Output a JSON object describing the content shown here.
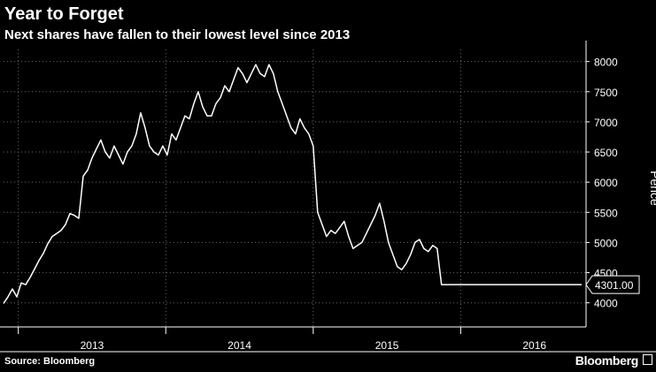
{
  "header": {
    "title": "Year to Forget",
    "subtitle": "Next shares have fallen to their lowest level since 2013"
  },
  "footer": {
    "source": "Source: Bloomberg",
    "brand": "Bloomberg"
  },
  "colors": {
    "background": "#000000",
    "line": "#ffffff",
    "grid": "#6a6a6a",
    "text": "#ffffff"
  },
  "chart_data": {
    "type": "line",
    "title": "Year to Forget",
    "subtitle": "Next shares have fallen to their lowest level since 2013",
    "xlabel": "",
    "ylabel": "Pence",
    "x_tick_labels": [
      "2013",
      "2014",
      "2015",
      "2016"
    ],
    "y_ticks": [
      4000,
      4500,
      5000,
      5500,
      6000,
      6500,
      7000,
      7500,
      8000
    ],
    "ylim": [
      3600,
      8200
    ],
    "xlim": [
      2012.9,
      2016.85
    ],
    "grid": "dotted",
    "last_value_label": "4301.00",
    "series": [
      {
        "x": [
          2012.9,
          2012.93,
          2012.96,
          2012.99,
          2013.02,
          2013.05,
          2013.08,
          2013.11,
          2013.14,
          2013.17,
          2013.2,
          2013.23,
          2013.26,
          2013.29,
          2013.32,
          2013.35,
          2013.38,
          2013.41,
          2013.44,
          2013.47,
          2013.5,
          2013.53,
          2013.56,
          2013.59,
          2013.62,
          2013.65,
          2013.68,
          2013.71,
          2013.74,
          2013.77,
          2013.8,
          2013.83,
          2013.86,
          2013.89,
          2013.92,
          2013.95,
          2013.98,
          2014.01,
          2014.04,
          2014.07,
          2014.1,
          2014.13,
          2014.16,
          2014.19,
          2014.22,
          2014.25,
          2014.28,
          2014.31,
          2014.34,
          2014.37,
          2014.4,
          2014.43,
          2014.46,
          2014.49,
          2014.52,
          2014.55,
          2014.58,
          2014.61,
          2014.64,
          2014.67,
          2014.7,
          2014.73,
          2014.76,
          2014.79,
          2014.82,
          2014.85,
          2014.88,
          2014.91,
          2014.94,
          2014.97,
          2015.0,
          2015.03,
          2015.06,
          2015.09,
          2015.12,
          2015.15,
          2015.18,
          2015.21,
          2015.24,
          2015.27,
          2015.3,
          2015.33,
          2015.36,
          2015.39,
          2015.42,
          2015.45,
          2015.48,
          2015.51,
          2015.54,
          2015.57,
          2015.6,
          2015.63,
          2015.66,
          2015.69,
          2015.72,
          2015.75,
          2015.78,
          2015.81,
          2015.84,
          2015.87,
          2015.9,
          2015.93,
          2015.96,
          2015.99,
          2016.02,
          2016.05,
          2016.08,
          2016.11,
          2016.14,
          2016.17,
          2016.2,
          2016.23,
          2016.26,
          2016.29,
          2016.32,
          2016.35,
          2016.38,
          2016.41,
          2016.44,
          2016.47,
          2016.5,
          2016.53,
          2016.56,
          2016.59,
          2016.62,
          2016.65,
          2016.68,
          2016.71,
          2016.74,
          2016.77,
          2016.8,
          2016.82
        ],
        "values": [
          3990,
          4100,
          4230,
          4100,
          4330,
          4300,
          4420,
          4560,
          4700,
          4820,
          4980,
          5100,
          5150,
          5200,
          5300,
          5480,
          5450,
          5400,
          6100,
          6200,
          6400,
          6550,
          6700,
          6500,
          6400,
          6600,
          6450,
          6300,
          6500,
          6600,
          6800,
          7150,
          6900,
          6600,
          6500,
          6450,
          6600,
          6450,
          6800,
          6700,
          6900,
          7100,
          7050,
          7300,
          7500,
          7250,
          7100,
          7100,
          7300,
          7400,
          7600,
          7500,
          7700,
          7900,
          7800,
          7650,
          7800,
          7950,
          7800,
          7750,
          7950,
          7800,
          7500,
          7300,
          7100,
          6900,
          6800,
          7050,
          6900,
          6800,
          6600,
          5500,
          5300,
          5100,
          5200,
          5150,
          5250,
          5350,
          5100,
          4900,
          4950,
          5000,
          5150,
          5300,
          5450,
          5650,
          5350,
          5000,
          4800,
          4600,
          4550,
          4650,
          4800,
          5000,
          5050,
          4900,
          4850,
          4950,
          4900,
          4301,
          4301,
          4301,
          4301,
          4301,
          4301,
          4301,
          4301,
          4301,
          4301,
          4301,
          4301,
          4301,
          4301,
          4301,
          4301,
          4301,
          4301,
          4301,
          4301,
          4301,
          4301,
          4301,
          4301,
          4301,
          4301,
          4301,
          4301,
          4301,
          4301,
          4301,
          4301,
          4301
        ]
      }
    ]
  }
}
